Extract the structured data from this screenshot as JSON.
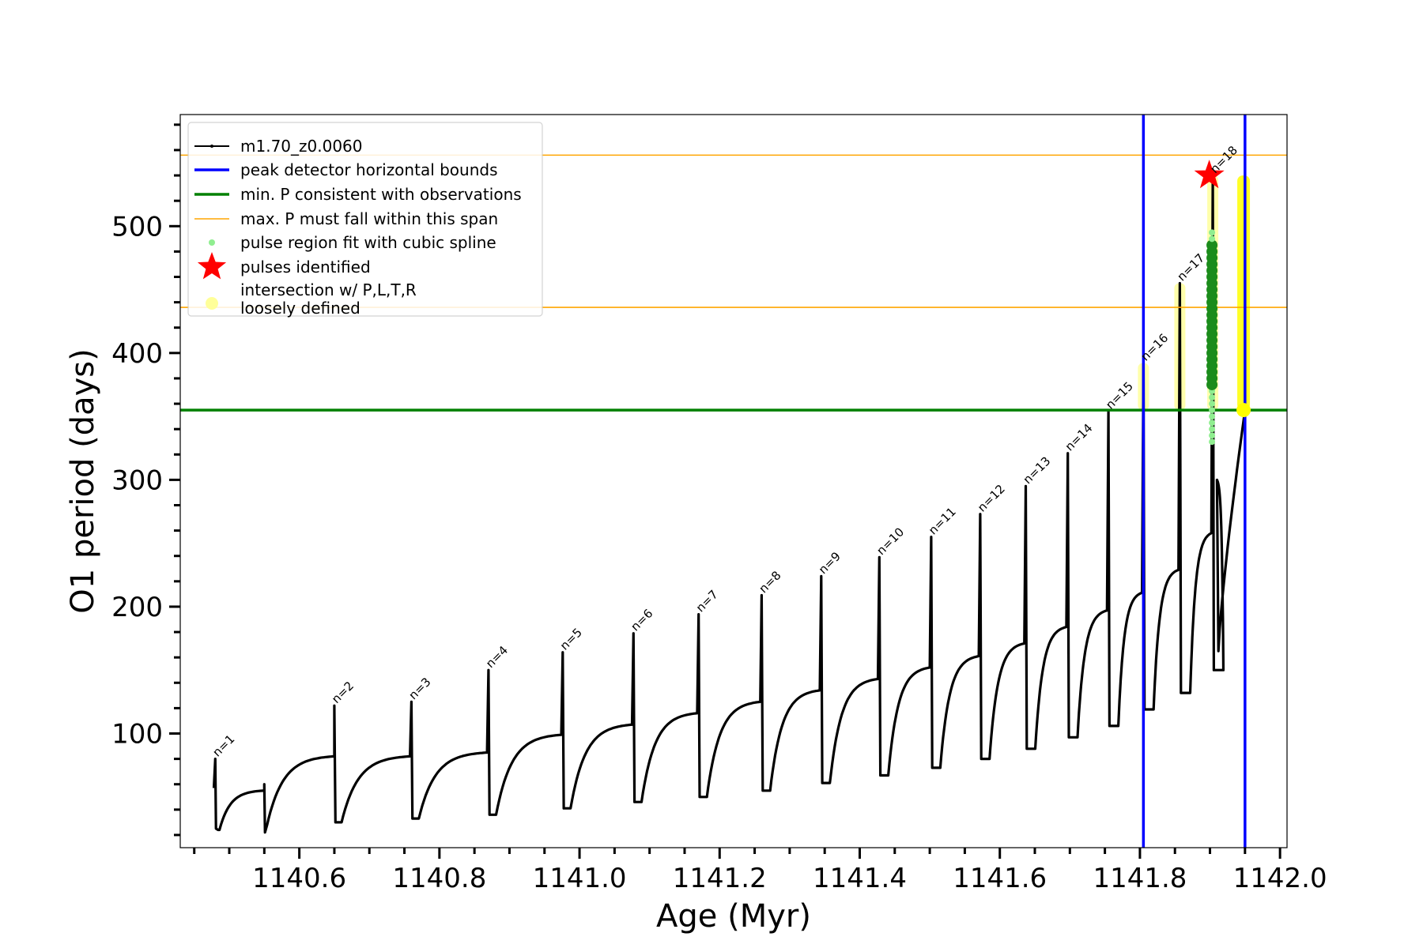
{
  "chart_data": {
    "type": "line",
    "title": "",
    "xlabel": "Age (Myr)",
    "ylabel": "O1 period (days)",
    "xlim": [
      1140.43,
      1142.01
    ],
    "ylim": [
      10,
      588
    ],
    "x_ticks": [
      1140.6,
      1140.8,
      1141.0,
      1141.2,
      1141.4,
      1141.6,
      1141.8,
      1142.0
    ],
    "x_tick_labels": [
      "1140.6",
      "1140.8",
      "1141.0",
      "1141.2",
      "1141.4",
      "1141.6",
      "1141.8",
      "1142.0"
    ],
    "y_ticks": [
      100,
      200,
      300,
      400,
      500
    ],
    "y_tick_labels": [
      "100",
      "200",
      "300",
      "400",
      "500"
    ],
    "legend_position": "upper-left",
    "legend": [
      {
        "label": "m1.70_z0.0060",
        "marker": "line-dot",
        "color": "#000000"
      },
      {
        "label": "peak detector horizontal bounds",
        "marker": "line",
        "color": "#0000ff"
      },
      {
        "label": "min. P consistent with observations",
        "marker": "line",
        "color": "#008000"
      },
      {
        "label": "max. P must fall within this span",
        "marker": "thin-line",
        "color": "#ffa500"
      },
      {
        "label": "pulse region fit with cubic spline",
        "marker": "dot",
        "color": "#90ee90"
      },
      {
        "label": "pulses identified",
        "marker": "star",
        "color": "#ff0000"
      },
      {
        "label": "intersection w/ P,L,T,R\nloosely defined",
        "marker": "circle",
        "color": "#ffff99"
      }
    ],
    "series_name": "m1.70_z0.0060",
    "pulses": [
      {
        "n": "n=1",
        "age": 1140.48,
        "peak": 80,
        "min": 24,
        "end": 55
      },
      {
        "n": "n=2",
        "age": 1140.65,
        "peak": 122,
        "min": 30,
        "end": 82
      },
      {
        "n": "n=3",
        "age": 1140.76,
        "peak": 125,
        "min": 33,
        "end": 85
      },
      {
        "n": "n=4",
        "age": 1140.87,
        "peak": 150,
        "min": 36,
        "end": 99
      },
      {
        "n": "n=5",
        "age": 1140.976,
        "peak": 164,
        "min": 41,
        "end": 107
      },
      {
        "n": "n=6",
        "age": 1141.077,
        "peak": 179,
        "min": 46,
        "end": 116
      },
      {
        "n": "n=7",
        "age": 1141.17,
        "peak": 194,
        "min": 50,
        "end": 125
      },
      {
        "n": "n=8",
        "age": 1141.26,
        "peak": 209,
        "min": 55,
        "end": 134
      },
      {
        "n": "n=9",
        "age": 1141.345,
        "peak": 224,
        "min": 61,
        "end": 143
      },
      {
        "n": "n=10",
        "age": 1141.428,
        "peak": 239,
        "min": 67,
        "end": 152
      },
      {
        "n": "n=11",
        "age": 1141.502,
        "peak": 255,
        "min": 73,
        "end": 161
      },
      {
        "n": "n=12",
        "age": 1141.572,
        "peak": 273,
        "min": 80,
        "end": 171
      },
      {
        "n": "n=13",
        "age": 1141.637,
        "peak": 295,
        "min": 88,
        "end": 184
      },
      {
        "n": "n=14",
        "age": 1141.697,
        "peak": 321,
        "min": 97,
        "end": 197
      },
      {
        "n": "n=15",
        "age": 1141.755,
        "peak": 354,
        "min": 106,
        "end": 211
      },
      {
        "n": "n=16",
        "age": 1141.805,
        "peak": 392,
        "min": 119,
        "end": 229
      },
      {
        "n": "n=17",
        "age": 1141.857,
        "peak": 455,
        "min": 132,
        "end": 258
      },
      {
        "n": "n=18",
        "age": 1141.904,
        "peak": 540,
        "min": 150,
        "end": 300
      }
    ],
    "pulse0": {
      "age": 1140.55,
      "peak": 60,
      "min": 22
    },
    "final_rise": {
      "age_start": 1141.912,
      "age_end": 1141.95,
      "p_start": 165,
      "p_end": 355
    },
    "blue_vlines_x": [
      1141.805,
      1141.95
    ],
    "green_hline_y": 355,
    "orange_hlines_y": [
      436,
      556
    ],
    "star_points": [
      {
        "x": 1141.899,
        "y": 540
      }
    ],
    "yellow_end_point": {
      "x": 1141.948,
      "y": 355
    }
  }
}
